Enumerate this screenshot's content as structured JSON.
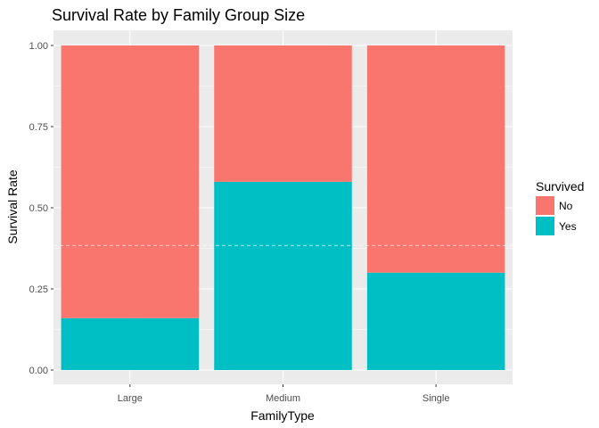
{
  "chart_data": {
    "type": "bar",
    "stacked": true,
    "title": "Survival Rate by Family Group Size",
    "xlabel": "FamilyType",
    "ylabel": "Survival Rate",
    "categories": [
      "Large",
      "Medium",
      "Single"
    ],
    "ylim": [
      0,
      1
    ],
    "yticks": [
      "0.00",
      "0.25",
      "0.50",
      "0.75",
      "1.00"
    ],
    "series": [
      {
        "name": "No",
        "values": [
          0.84,
          0.42,
          0.7
        ],
        "color": "#F8766D"
      },
      {
        "name": "Yes",
        "values": [
          0.16,
          0.58,
          0.3
        ],
        "color": "#00BFC4"
      }
    ],
    "reference_line": {
      "y": 0.384,
      "style": "dashed",
      "color": "#ffffff"
    },
    "legend": {
      "title": "Survived",
      "position": "right"
    },
    "grid": true,
    "panel_background": "#EBEBEB"
  }
}
